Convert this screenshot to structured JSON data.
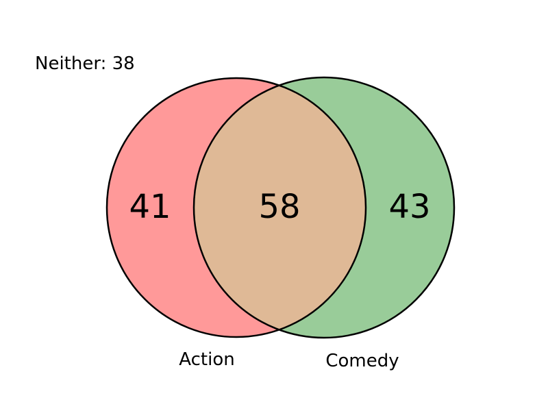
{
  "venn": {
    "neither": {
      "label": "Neither: 38",
      "count": 38
    },
    "sets": [
      {
        "name": "Action",
        "only_count": "41",
        "color": "#ff9999"
      },
      {
        "name": "Comedy",
        "only_count": "43",
        "color": "#99cc99"
      }
    ],
    "intersection": {
      "count": "58",
      "color": "#dfb996"
    },
    "outline_color": "#000000"
  }
}
